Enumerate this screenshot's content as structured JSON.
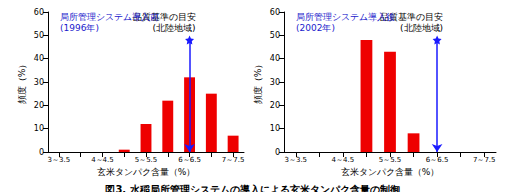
{
  "chart_data": [
    {
      "type": "bar",
      "title": "局所管理システム導入前\n(1996年)",
      "xlabel": "玄米タンパク含量（%）",
      "ylabel": "頻度（%）",
      "categories": [
        "3～3.5",
        null,
        "4～4.5",
        null,
        "5～5.5",
        null,
        "6～6.5",
        null,
        "7～7.5"
      ],
      "values": [
        0,
        0,
        0,
        1,
        12,
        22,
        32,
        25,
        7
      ],
      "color": "#ee0000",
      "ylim": [
        0,
        60
      ],
      "yticks": [
        0,
        10,
        20,
        30,
        40,
        50,
        60
      ],
      "grid": false,
      "annotation": {
        "text": "品質基準の目安\n(北陸地域)",
        "x": "6～6.5",
        "y": 48
      }
    },
    {
      "type": "bar",
      "title": "局所管理システム導入後\n(2002年)",
      "xlabel": "玄米タンパク含量（%）",
      "ylabel": "頻度（%）",
      "categories": [
        "3～3.5",
        null,
        "4～4.5",
        null,
        "5～5.5",
        null,
        "6～6.5",
        null,
        "7～7.5"
      ],
      "values": [
        0,
        0,
        0,
        48,
        43,
        8,
        0,
        0,
        0
      ],
      "color": "#ee0000",
      "ylim": [
        0,
        60
      ],
      "yticks": [
        0,
        10,
        20,
        30,
        40,
        50,
        60
      ],
      "grid": false,
      "annotation": {
        "text": "品質基準の目安\n(北陸地域)",
        "x": "6～6.5",
        "y": 48
      }
    }
  ],
  "caption": "図3. 水稲局所管理システムの導入による玄米タンパク含量の制御"
}
